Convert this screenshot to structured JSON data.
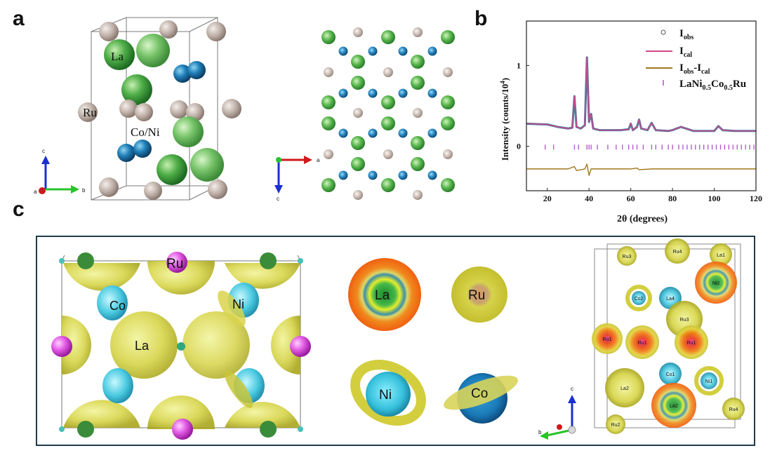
{
  "panels": {
    "a": "a",
    "b": "b",
    "c": "c"
  },
  "panel_a": {
    "atom_labels": {
      "la": "La",
      "ru": "Ru",
      "coni": "Co/Ni"
    },
    "axes_left": {
      "c": "c",
      "a": "a",
      "b": "b"
    },
    "axes_right": {
      "a": "a",
      "c": "c"
    }
  },
  "panel_b": {
    "legend": {
      "iobs_main": "I",
      "iobs_sub": "obs",
      "ical_main": "I",
      "ical_sub": "cal",
      "diff_main1": "I",
      "diff_sub1": "obs",
      "diff_mid": "-I",
      "diff_sub2": "cal",
      "phase_1": "LaNi",
      "phase_s1": "0.5",
      "phase_2": "Co",
      "phase_s2": "0.5",
      "phase_3": "Ru"
    },
    "ylabel_main": "Intensity (counts/10",
    "ylabel_sup": "4",
    "ylabel_end": ")",
    "xlabel": "2θ (degrees)",
    "colors": {
      "obs": "#3a7a9c",
      "cal": "#d4478a",
      "diff": "#a0781c",
      "bragg": "#b04fc8"
    }
  },
  "chart_data": {
    "type": "line",
    "title": "",
    "xlabel": "2θ (degrees)",
    "ylabel": "Intensity (counts/10^4)",
    "xlim": [
      10,
      120
    ],
    "ylim": [
      -0.55,
      1.55
    ],
    "xticks": [
      "20",
      "40",
      "60",
      "80",
      "100",
      "120"
    ],
    "yticks": [
      "0",
      "1"
    ],
    "series": [
      {
        "name": "Iobs",
        "x": [
          10,
          20,
          25,
          30,
          32,
          33,
          34,
          36,
          38,
          39,
          40,
          41,
          42,
          45,
          50,
          55,
          59,
          60,
          61,
          63,
          64,
          65,
          68,
          70,
          72,
          78,
          80,
          84,
          90,
          100,
          102,
          104,
          110,
          120
        ],
        "y": [
          0.28,
          0.27,
          0.24,
          0.22,
          0.23,
          0.62,
          0.24,
          0.22,
          0.26,
          1.1,
          0.3,
          0.4,
          0.22,
          0.2,
          0.2,
          0.2,
          0.21,
          0.28,
          0.2,
          0.24,
          0.33,
          0.22,
          0.2,
          0.29,
          0.2,
          0.19,
          0.2,
          0.24,
          0.19,
          0.19,
          0.25,
          0.2,
          0.19,
          0.19
        ]
      },
      {
        "name": "Ical",
        "x": [
          10,
          20,
          25,
          30,
          32,
          33,
          34,
          36,
          38,
          39,
          40,
          41,
          42,
          45,
          50,
          55,
          59,
          60,
          61,
          63,
          64,
          65,
          68,
          70,
          72,
          78,
          80,
          84,
          90,
          100,
          102,
          104,
          110,
          120
        ],
        "y": [
          0.28,
          0.27,
          0.24,
          0.22,
          0.23,
          0.62,
          0.24,
          0.22,
          0.26,
          1.1,
          0.3,
          0.4,
          0.22,
          0.2,
          0.2,
          0.2,
          0.21,
          0.28,
          0.2,
          0.24,
          0.33,
          0.22,
          0.2,
          0.29,
          0.2,
          0.19,
          0.2,
          0.24,
          0.19,
          0.19,
          0.25,
          0.2,
          0.19,
          0.19
        ]
      },
      {
        "name": "Iobs-Ical",
        "x": [
          10,
          20,
          30,
          33,
          34,
          38,
          39,
          40,
          41,
          50,
          60,
          63,
          64,
          70,
          80,
          90,
          100,
          110,
          120
        ],
        "y": [
          -0.28,
          -0.28,
          -0.28,
          -0.25,
          -0.3,
          -0.28,
          -0.22,
          -0.36,
          -0.28,
          -0.28,
          -0.28,
          -0.27,
          -0.29,
          -0.28,
          -0.28,
          -0.28,
          -0.28,
          -0.28,
          -0.28
        ]
      },
      {
        "name": "LaNi0.5Co0.5Ru",
        "type": "bragg",
        "x": [
          19,
          23,
          33,
          35,
          39,
          40,
          41,
          44,
          49,
          53,
          56,
          59,
          61,
          63,
          66,
          70,
          72,
          75,
          78,
          80,
          83,
          85,
          87,
          89,
          91,
          93,
          95,
          97,
          99,
          101,
          103,
          105,
          107,
          109,
          111,
          113,
          115,
          117,
          119
        ]
      }
    ]
  },
  "panel_c": {
    "left": {
      "ru": "Ru",
      "co": "Co",
      "ni": "Ni",
      "la": "La"
    },
    "middle": {
      "la": "La",
      "ru": "Ru",
      "ni": "Ni",
      "co": "Co"
    },
    "right": {
      "labels": [
        "Ru3",
        "Ru4",
        "La1",
        "Ni2",
        "Co2",
        "La4",
        "Ru3",
        "Ru1",
        "Ru1",
        "Ru1",
        "Co1",
        "Ni1",
        "La2",
        "La2",
        "Ru4",
        "Ru2"
      ],
      "axes": {
        "c": "c",
        "b": "b"
      }
    }
  }
}
